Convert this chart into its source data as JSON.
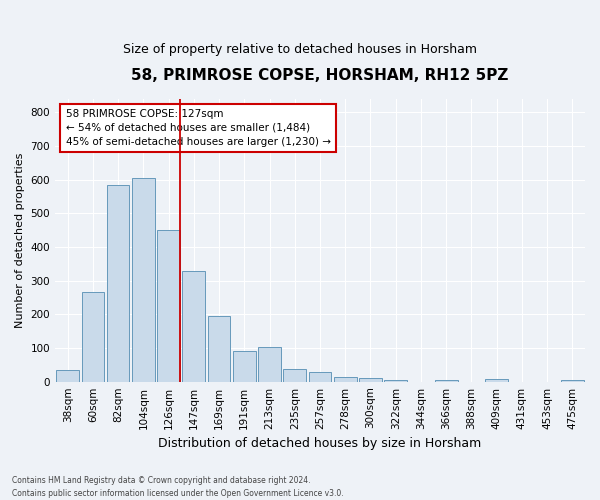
{
  "title": "58, PRIMROSE COPSE, HORSHAM, RH12 5PZ",
  "subtitle": "Size of property relative to detached houses in Horsham",
  "xlabel": "Distribution of detached houses by size in Horsham",
  "ylabel": "Number of detached properties",
  "footnote1": "Contains HM Land Registry data © Crown copyright and database right 2024.",
  "footnote2": "Contains public sector information licensed under the Open Government Licence v3.0.",
  "categories": [
    "38sqm",
    "60sqm",
    "82sqm",
    "104sqm",
    "126sqm",
    "147sqm",
    "169sqm",
    "191sqm",
    "213sqm",
    "235sqm",
    "257sqm",
    "278sqm",
    "300sqm",
    "322sqm",
    "344sqm",
    "366sqm",
    "388sqm",
    "409sqm",
    "431sqm",
    "453sqm",
    "475sqm"
  ],
  "values": [
    35,
    265,
    585,
    605,
    450,
    330,
    195,
    92,
    102,
    38,
    30,
    14,
    11,
    5,
    0,
    6,
    0,
    8,
    0,
    0,
    5
  ],
  "bar_color": "#c9daea",
  "bar_edge_color": "#6699bb",
  "red_line_bin": 4,
  "red_line_color": "#cc0000",
  "annotation_text": "58 PRIMROSE COPSE: 127sqm\n← 54% of detached houses are smaller (1,484)\n45% of semi-detached houses are larger (1,230) →",
  "annotation_box_color": "#cc0000",
  "ylim": [
    0,
    840
  ],
  "yticks": [
    0,
    100,
    200,
    300,
    400,
    500,
    600,
    700,
    800
  ],
  "title_fontsize": 11,
  "subtitle_fontsize": 9,
  "ylabel_fontsize": 8,
  "xlabel_fontsize": 9,
  "tick_fontsize": 7.5,
  "annotation_fontsize": 7.5,
  "footnote_fontsize": 5.5,
  "background_color": "#eef2f7",
  "plot_bg_color": "#eef2f7"
}
